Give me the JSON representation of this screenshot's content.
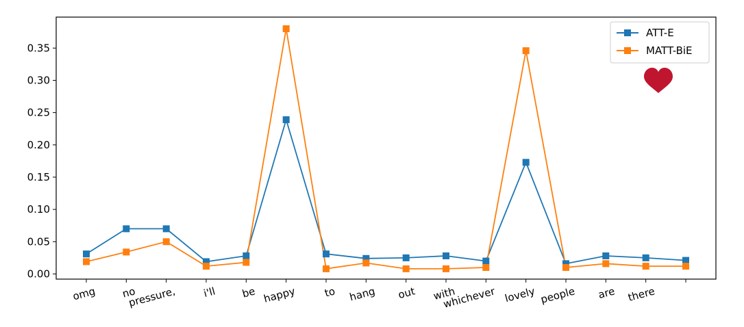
{
  "chart_data": {
    "type": "line",
    "categories": [
      "omg",
      "no",
      "pressure,",
      "i'll",
      "be",
      "happy",
      "to",
      "hang",
      "out",
      "with",
      "whichever",
      "lovely",
      "people",
      "are",
      "there",
      ""
    ],
    "series": [
      {
        "name": "ATT-E",
        "color": "#1f77b4",
        "marker": "square",
        "values": [
          0.031,
          0.07,
          0.07,
          0.019,
          0.028,
          0.239,
          0.031,
          0.024,
          0.025,
          0.028,
          0.02,
          0.173,
          0.016,
          0.028,
          0.025,
          0.021
        ]
      },
      {
        "name": "MATT-BiE",
        "color": "#ff7f0e",
        "marker": "square",
        "values": [
          0.019,
          0.034,
          0.05,
          0.012,
          0.018,
          0.38,
          0.008,
          0.017,
          0.008,
          0.008,
          0.01,
          0.346,
          0.01,
          0.016,
          0.012,
          0.012
        ]
      }
    ],
    "yticks": [
      "0.00",
      "0.05",
      "0.10",
      "0.15",
      "0.20",
      "0.25",
      "0.30",
      "0.35"
    ],
    "ylim": [
      -0.008,
      0.398
    ],
    "legend_position": "top-right",
    "grid": false,
    "icon": "heart-icon",
    "icon_color": "#c0152f"
  }
}
